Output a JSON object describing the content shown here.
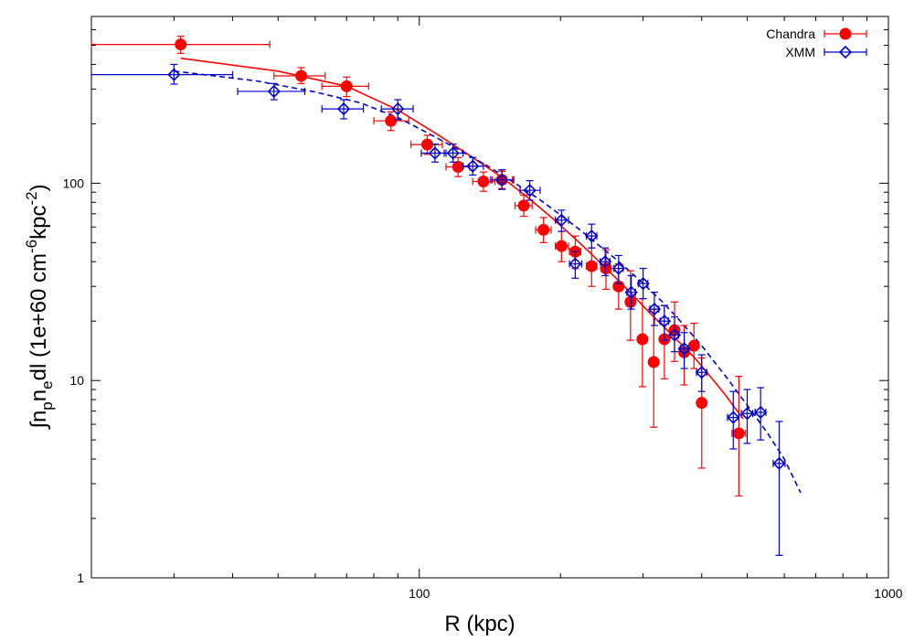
{
  "chart_data": {
    "type": "scatter",
    "title": "",
    "xlabel": "R (kpc)",
    "ylabel_parts": {
      "integral": "∫",
      "n1": "n",
      "sub1": "p",
      "n2": "n",
      "sub2": "e",
      "dl": "dl (1e+60 cm",
      "exp1": "-6",
      "mid": "kpc",
      "exp2": "-2",
      "close": ")"
    },
    "xscale": "log",
    "yscale": "log",
    "xlim": [
      20,
      1000
    ],
    "ylim": [
      1,
      700
    ],
    "x_tick_labels": [
      "100",
      "1000"
    ],
    "y_tick_labels": [
      "1",
      "10",
      "100"
    ],
    "legend_position": "top-right",
    "series": [
      {
        "name": "Chandra",
        "color": "#ff0000",
        "marker": "filled-circle",
        "points": [
          {
            "x": 31,
            "y": 505,
            "xerr": [
              20,
              48
            ],
            "yerr": [
              455,
              555
            ]
          },
          {
            "x": 56,
            "y": 350,
            "xerr": [
              49,
              63
            ],
            "yerr": [
              320,
              385
            ]
          },
          {
            "x": 70,
            "y": 310,
            "xerr": [
              62,
              78
            ],
            "yerr": [
              275,
              345
            ]
          },
          {
            "x": 87,
            "y": 207,
            "xerr": [
              80,
              95
            ],
            "yerr": [
              185,
              230
            ]
          },
          {
            "x": 104,
            "y": 157,
            "xerr": [
              96,
              112
            ],
            "yerr": [
              140,
              175
            ]
          },
          {
            "x": 121,
            "y": 121,
            "xerr": [
              114,
              128
            ],
            "yerr": [
              108,
              135
            ]
          },
          {
            "x": 137,
            "y": 102,
            "xerr": [
              130,
              145
            ],
            "yerr": [
              91,
              114
            ]
          },
          {
            "x": 150,
            "y": 104,
            "xerr": [
              143,
              158
            ],
            "yerr": [
              94,
              115
            ]
          },
          {
            "x": 167,
            "y": 77,
            "xerr": [
              160,
              174
            ],
            "yerr": [
              68,
              87
            ]
          },
          {
            "x": 184,
            "y": 58,
            "xerr": [
              177,
              191
            ],
            "yerr": [
              50,
              67
            ]
          },
          {
            "x": 201,
            "y": 48,
            "xerr": [
              195,
              208
            ],
            "yerr": [
              40,
              57
            ]
          },
          {
            "x": 215,
            "y": 45,
            "xerr": [
              209,
              221
            ],
            "yerr": [
              37,
              54
            ]
          },
          {
            "x": 233,
            "y": 38,
            "xerr": [
              227,
              239
            ],
            "yerr": [
              30,
              47
            ]
          },
          {
            "x": 250,
            "y": 37,
            "xerr": [
              244,
              256
            ],
            "yerr": [
              29,
              46
            ]
          },
          {
            "x": 266,
            "y": 30,
            "xerr": [
              260,
              272
            ],
            "yerr": [
              23,
              39
            ]
          },
          {
            "x": 282,
            "y": 25,
            "xerr": [
              276,
              288
            ],
            "yerr": [
              16,
              36
            ]
          },
          {
            "x": 299,
            "y": 16.2,
            "xerr": [
              293,
              305
            ],
            "yerr": [
              9.3,
              26
            ]
          },
          {
            "x": 316,
            "y": 12.4,
            "xerr": [
              310,
              322
            ],
            "yerr": [
              5.8,
              23
            ]
          },
          {
            "x": 333,
            "y": 16.2,
            "xerr": [
              327,
              339
            ],
            "yerr": [
              10.2,
              24
            ]
          },
          {
            "x": 350,
            "y": 18.0,
            "xerr": [
              344,
              356
            ],
            "yerr": [
              12.5,
              25
            ]
          },
          {
            "x": 367,
            "y": 13.9,
            "xerr": [
              361,
              373
            ],
            "yerr": [
              9.5,
              19
            ]
          },
          {
            "x": 385,
            "y": 15.0,
            "xerr": [
              379,
              391
            ],
            "yerr": [
              11.5,
              19.5
            ]
          },
          {
            "x": 400,
            "y": 7.7,
            "xerr": [
              392,
              408
            ],
            "yerr": [
              3.6,
              13
            ]
          },
          {
            "x": 480,
            "y": 5.4,
            "xerr": [
              464,
              496
            ],
            "yerr": [
              2.6,
              10.5
            ]
          }
        ],
        "fit": {
          "style": "solid",
          "x": [
            31,
            50,
            70,
            90,
            110,
            130,
            150,
            170,
            190,
            210,
            230,
            250,
            270,
            290,
            310,
            330,
            350,
            370,
            390,
            410,
            430,
            450,
            470,
            490
          ],
          "y": [
            430,
            370,
            310,
            235,
            175,
            135,
            107,
            85,
            68,
            55,
            45,
            37,
            31,
            26,
            22,
            19,
            16.5,
            14.5,
            12.7,
            11.0,
            9.6,
            8.4,
            7.3,
            6.4
          ]
        }
      },
      {
        "name": "XMM",
        "color": "#0000cc",
        "marker": "open-diamond",
        "points": [
          {
            "x": 30,
            "y": 355,
            "xerr": [
              20,
              40
            ],
            "yerr": [
              318,
              400
            ]
          },
          {
            "x": 49,
            "y": 292,
            "xerr": [
              41,
              57
            ],
            "yerr": [
              265,
              320
            ]
          },
          {
            "x": 69,
            "y": 238,
            "xerr": [
              62,
              76
            ],
            "yerr": [
              212,
              265
            ]
          },
          {
            "x": 90,
            "y": 238,
            "xerr": [
              83,
              97
            ],
            "yerr": [
              210,
              265
            ]
          },
          {
            "x": 108,
            "y": 142,
            "xerr": [
              101,
              114
            ],
            "yerr": [
              128,
              158
            ]
          },
          {
            "x": 118,
            "y": 142,
            "xerr": [
              113,
              124
            ],
            "yerr": [
              128,
              158
            ]
          },
          {
            "x": 130,
            "y": 122,
            "xerr": [
              124,
              137
            ],
            "yerr": [
              110,
              135
            ]
          },
          {
            "x": 150,
            "y": 104,
            "xerr": [
              142,
              159
            ],
            "yerr": [
              93,
              117
            ]
          },
          {
            "x": 172,
            "y": 92,
            "xerr": [
              164,
              181
            ],
            "yerr": [
              82,
              103
            ]
          },
          {
            "x": 201,
            "y": 65,
            "xerr": [
              195,
              208
            ],
            "yerr": [
              57,
              73
            ]
          },
          {
            "x": 215,
            "y": 39,
            "xerr": [
              209,
              222
            ],
            "yerr": [
              33,
              45
            ]
          },
          {
            "x": 233,
            "y": 54,
            "xerr": [
              227,
              239
            ],
            "yerr": [
              47,
              62
            ]
          },
          {
            "x": 249,
            "y": 40,
            "xerr": [
              243,
              255
            ],
            "yerr": [
              34,
              47
            ]
          },
          {
            "x": 266,
            "y": 37,
            "xerr": [
              260,
              272
            ],
            "yerr": [
              31,
              43
            ]
          },
          {
            "x": 283,
            "y": 28,
            "xerr": [
              277,
              289
            ],
            "yerr": [
              23,
              34
            ]
          },
          {
            "x": 300,
            "y": 31,
            "xerr": [
              293,
              307
            ],
            "yerr": [
              26,
              37
            ]
          },
          {
            "x": 317,
            "y": 23,
            "xerr": [
              310,
              324
            ],
            "yerr": [
              19,
              28
            ]
          },
          {
            "x": 333,
            "y": 20,
            "xerr": [
              326,
              340
            ],
            "yerr": [
              16,
              24
            ]
          },
          {
            "x": 350,
            "y": 17,
            "xerr": [
              343,
              357
            ],
            "yerr": [
              14,
              21
            ]
          },
          {
            "x": 367,
            "y": 14.5,
            "xerr": [
              360,
              374
            ],
            "yerr": [
              11.5,
              17.5
            ]
          },
          {
            "x": 400,
            "y": 11.0,
            "xerr": [
              390,
              410
            ],
            "yerr": [
              8.8,
              13.5
            ]
          },
          {
            "x": 467,
            "y": 6.5,
            "xerr": [
              454,
              480
            ],
            "yerr": [
              4.5,
              8.8
            ]
          },
          {
            "x": 500,
            "y": 6.8,
            "xerr": [
              486,
              514
            ],
            "yerr": [
              4.8,
              9.0
            ]
          },
          {
            "x": 534,
            "y": 6.9,
            "xerr": [
              520,
              548
            ],
            "yerr": [
              5.0,
              9.2
            ]
          },
          {
            "x": 585,
            "y": 3.8,
            "xerr": [
              568,
              602
            ],
            "yerr": [
              1.3,
              6.2
            ]
          }
        ],
        "fit": {
          "style": "dashed",
          "x": [
            30,
            45,
            60,
            75,
            90,
            105,
            120,
            140,
            160,
            180,
            200,
            220,
            240,
            260,
            280,
            300,
            330,
            360,
            400,
            450,
            500,
            550,
            600,
            650
          ],
          "y": [
            370,
            330,
            290,
            255,
            215,
            178,
            150,
            122,
            100,
            83,
            69,
            58,
            49,
            42,
            36,
            31,
            25,
            20,
            15,
            10.5,
            7.5,
            5.5,
            4.0,
            2.7
          ]
        }
      }
    ]
  }
}
